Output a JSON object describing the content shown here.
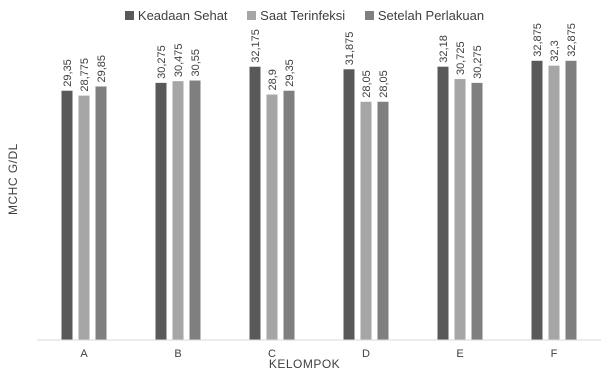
{
  "chart_data": {
    "type": "bar",
    "title": "",
    "xlabel": "KELOMPOK",
    "ylabel": "MCHC G/DL",
    "categories": [
      "A",
      "B",
      "C",
      "D",
      "E",
      "F"
    ],
    "series": [
      {
        "name": "Keadaan Sehat",
        "color": "#595959",
        "values": [
          29.35,
          30.275,
          32.175,
          31.875,
          32.18,
          32.875
        ],
        "labels": [
          "29,35",
          "30,275",
          "32,175",
          "31,875",
          "32,18",
          "32,875"
        ]
      },
      {
        "name": "Saat Terinfeksi",
        "color": "#a6a6a6",
        "values": [
          28.775,
          30.475,
          28.9,
          28.05,
          30.725,
          32.3
        ],
        "labels": [
          "28,775",
          "30,475",
          "28,9",
          "28,05",
          "30,725",
          "32,3"
        ]
      },
      {
        "name": "Setelah Perlakuan",
        "color": "#7f7f7f",
        "values": [
          29.85,
          30.55,
          29.35,
          28.05,
          30.275,
          32.875
        ],
        "labels": [
          "29,85",
          "30,55",
          "29,35",
          "28,05",
          "30,275",
          "32,875"
        ]
      }
    ],
    "ylim": [
      0,
      36.5
    ],
    "grid": false,
    "legend_position": "top"
  }
}
